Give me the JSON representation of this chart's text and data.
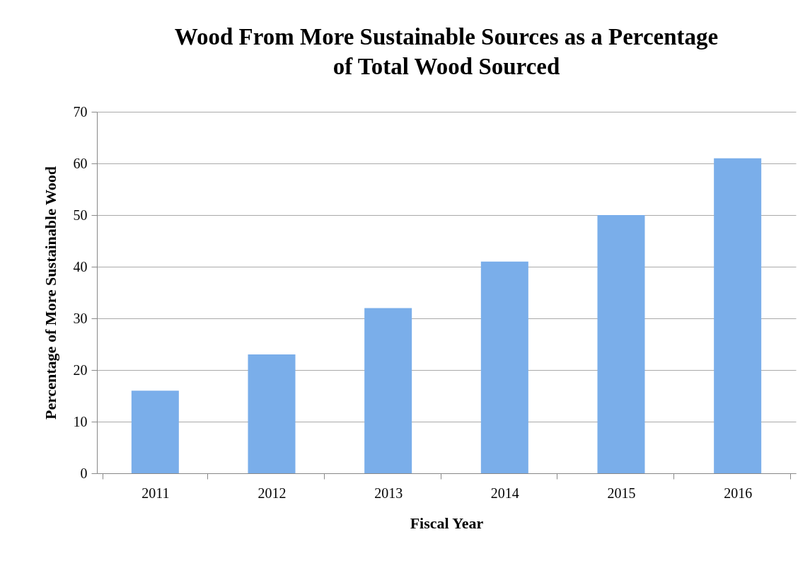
{
  "chart_data": {
    "type": "bar",
    "title": "Wood From More Sustainable Sources as a Percentage of Total Wood Sourced",
    "xlabel": "Fiscal Year",
    "ylabel": "Percentage of More Sustainable Wood",
    "categories": [
      "2011",
      "2012",
      "2013",
      "2014",
      "2015",
      "2016"
    ],
    "values": [
      16,
      23,
      32,
      41,
      50,
      61
    ],
    "color": "#7aaeea",
    "ylim": [
      0,
      70
    ],
    "yticks": [
      0,
      10,
      20,
      30,
      40,
      50,
      60,
      70
    ],
    "grid": "y"
  }
}
